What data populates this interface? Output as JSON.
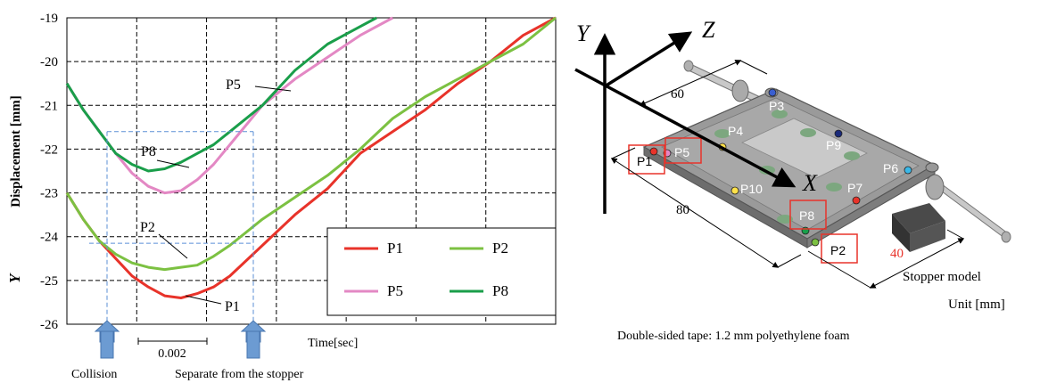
{
  "chart_data": {
    "type": "line",
    "ylabel_italic": "Y",
    "ylabel": "Displacement [mm]",
    "xlabel": "Time[sec]",
    "ylim": [
      -26,
      -19
    ],
    "y_ticks": [
      "-19",
      "-20",
      "-21",
      "-22",
      "-23",
      "-24",
      "-25",
      "-26"
    ],
    "x_range": [
      0,
      0.015
    ],
    "grid": true,
    "legend_position": "bottom-right",
    "series": [
      {
        "name": "P1",
        "color": "#e8332a",
        "x": [
          0,
          0.0005,
          0.001,
          0.0015,
          0.002,
          0.0025,
          0.003,
          0.0035,
          0.004,
          0.0045,
          0.005,
          0.006,
          0.007,
          0.008,
          0.009,
          0.01,
          0.011,
          0.012,
          0.013,
          0.014,
          0.015
        ],
        "y": [
          -23.0,
          -23.6,
          -24.1,
          -24.5,
          -24.9,
          -25.15,
          -25.35,
          -25.4,
          -25.3,
          -25.15,
          -24.9,
          -24.2,
          -23.5,
          -22.9,
          -22.1,
          -21.6,
          -21.1,
          -20.5,
          -20.0,
          -19.4,
          -19.0
        ]
      },
      {
        "name": "P2",
        "color": "#7cc142",
        "x": [
          0,
          0.0005,
          0.001,
          0.0015,
          0.002,
          0.0025,
          0.003,
          0.0035,
          0.004,
          0.0045,
          0.005,
          0.006,
          0.007,
          0.008,
          0.009,
          0.01,
          0.011,
          0.012,
          0.013,
          0.014,
          0.015
        ],
        "y": [
          -23.0,
          -23.6,
          -24.1,
          -24.4,
          -24.6,
          -24.7,
          -24.75,
          -24.7,
          -24.65,
          -24.45,
          -24.2,
          -23.6,
          -23.1,
          -22.6,
          -22.0,
          -21.3,
          -20.8,
          -20.4,
          -20.0,
          -19.6,
          -19.0
        ]
      },
      {
        "name": "P5",
        "color": "#e388c4",
        "x": [
          0,
          0.0005,
          0.001,
          0.0015,
          0.002,
          0.0025,
          0.003,
          0.0035,
          0.004,
          0.0045,
          0.005,
          0.006,
          0.007,
          0.008,
          0.009,
          0.01
        ],
        "y": [
          -20.5,
          -21.1,
          -21.6,
          -22.1,
          -22.55,
          -22.85,
          -23.0,
          -22.95,
          -22.7,
          -22.35,
          -21.9,
          -21.0,
          -20.4,
          -19.9,
          -19.4,
          -19.0
        ]
      },
      {
        "name": "P8",
        "color": "#1a9e4a",
        "x": [
          0,
          0.0005,
          0.001,
          0.0015,
          0.002,
          0.0025,
          0.003,
          0.0035,
          0.004,
          0.0045,
          0.005,
          0.006,
          0.007,
          0.008,
          0.009,
          0.0095
        ],
        "y": [
          -20.5,
          -21.1,
          -21.6,
          -22.1,
          -22.35,
          -22.5,
          -22.45,
          -22.3,
          -22.1,
          -21.9,
          -21.6,
          -21.0,
          -20.2,
          -19.6,
          -19.2,
          -19.0
        ]
      }
    ],
    "callouts": [
      "P8",
      "P5",
      "P2",
      "P1"
    ],
    "markers": {
      "span_label": "0.002",
      "collision": "Collision",
      "separate": "Separate from the stopper"
    }
  },
  "diagram": {
    "axes": [
      "Y",
      "Z",
      "X"
    ],
    "points": [
      "P1",
      "P2",
      "P3",
      "P4",
      "P5",
      "P6",
      "P7",
      "P8",
      "P9",
      "P10"
    ],
    "dims": [
      "60",
      "80",
      "40"
    ],
    "stopper_label": "Stopper model",
    "unit_label": "Unit [mm]",
    "caption": "Double-sided tape: 1.2 mm polyethylene foam"
  }
}
